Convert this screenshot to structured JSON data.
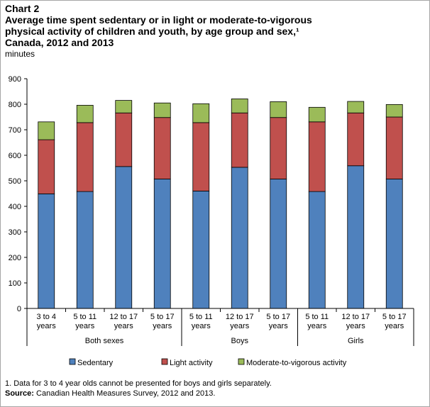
{
  "header": {
    "chart_label": "Chart 2",
    "title": "Average time spent sedentary or in light or moderate-to-vigorous\nphysical activity of children and youth, by age group and sex,¹\nCanada, 2012 and 2013",
    "units": "minutes"
  },
  "chart_data": {
    "type": "bar",
    "stacked": true,
    "categories": [
      "3 to 4 years",
      "5 to 11 years",
      "12 to 17 years",
      "5 to 17 years",
      "5 to 11 years",
      "12 to 17 years",
      "5 to 17 years",
      "5 to 11 years",
      "12 to 17 years",
      "5 to 17 years"
    ],
    "category_lines": [
      [
        "3 to 4",
        "years"
      ],
      [
        "5 to 11",
        "years"
      ],
      [
        "12 to 17",
        "years"
      ],
      [
        "5 to 17",
        "years"
      ],
      [
        "5 to 11",
        "years"
      ],
      [
        "12 to 17",
        "years"
      ],
      [
        "5 to 17",
        "years"
      ],
      [
        "5 to 11",
        "years"
      ],
      [
        "12 to 17",
        "years"
      ],
      [
        "5 to 17",
        "years"
      ]
    ],
    "groups": [
      {
        "label": "Both sexes",
        "span": [
          0,
          3
        ]
      },
      {
        "label": "Boys",
        "span": [
          4,
          6
        ]
      },
      {
        "label": "Girls",
        "span": [
          7,
          9
        ]
      }
    ],
    "series": [
      {
        "name": "Sedentary",
        "color": "#4f81bd",
        "values": [
          449,
          458,
          556,
          507,
          460,
          553,
          507,
          458,
          559,
          507
        ]
      },
      {
        "name": "Light activity",
        "color": "#c0504d",
        "values": [
          212,
          270,
          210,
          241,
          268,
          213,
          241,
          273,
          207,
          243
        ]
      },
      {
        "name": "Moderate-to-vigorous activity",
        "color": "#9bbb59",
        "values": [
          70,
          68,
          49,
          57,
          74,
          55,
          62,
          57,
          45,
          49
        ]
      }
    ],
    "ylim": [
      0,
      900
    ],
    "yticks": [
      0,
      100,
      200,
      300,
      400,
      500,
      600,
      700,
      800,
      900
    ],
    "grid": false,
    "legend_position": "bottom"
  },
  "footnotes": {
    "note": "1. Data for 3 to 4 year olds cannot be presented for boys and girls separately.",
    "source_label": "Source:",
    "source_text": " Canadian Health Measures Survey, 2012 and 2013."
  }
}
